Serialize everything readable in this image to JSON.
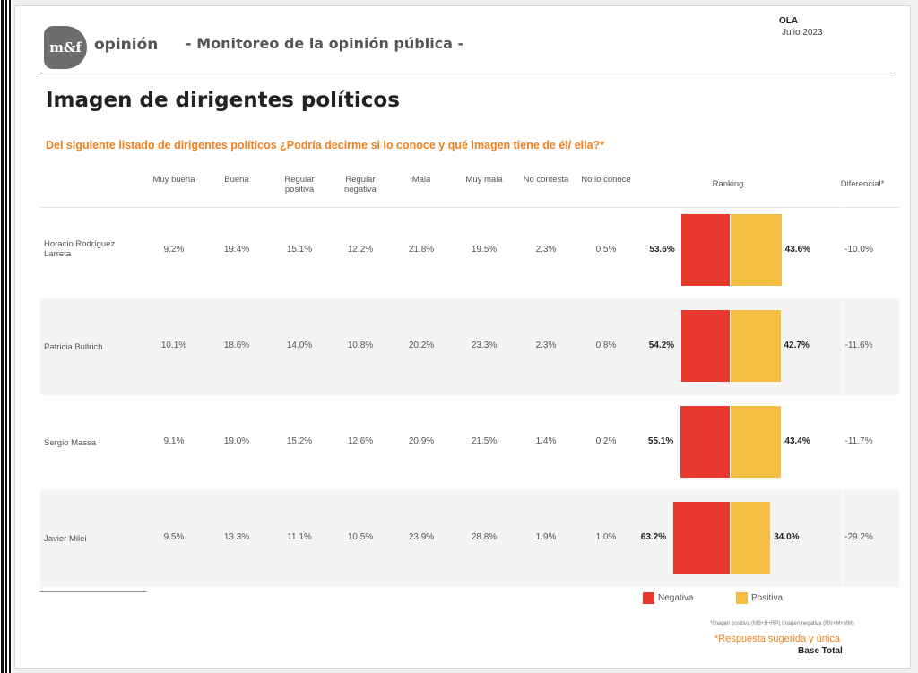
{
  "header": {
    "logo_text": "m&f",
    "brand": "opinión",
    "subtitle": "- Monitoreo de la opinión pública -",
    "wave_label": "OLA",
    "wave_date": "Julio 2023"
  },
  "title": "Imagen de dirigentes políticos",
  "question": "Del siguiente listado de dirigentes políticos ¿Podría decirme si lo conoce y qué imagen tiene de él/ ella?*",
  "chart_data": {
    "type": "table",
    "columns": [
      "Muy buena",
      "Buena",
      "Regular positiva",
      "Regular negativa",
      "Mala",
      "Muy mala",
      "No contesta",
      "No lo conoce"
    ],
    "ranking_header": "Ranking",
    "diff_header": "Diferencial*",
    "rows": [
      {
        "name": "Horacio Rodríguez Larreta",
        "values": [
          "9.2%",
          "19.4%",
          "15.1%",
          "12.2%",
          "21.8%",
          "19.5%",
          "2.3%",
          "0.5%"
        ],
        "negativa": 53.6,
        "positiva": 43.6,
        "negativa_label": "53.6%",
        "positiva_label": "43.6%",
        "diferencial": "-10.0%"
      },
      {
        "name": "Patricia Bullrich",
        "values": [
          "10.1%",
          "18.6%",
          "14.0%",
          "10.8%",
          "20.2%",
          "23.3%",
          "2.3%",
          "0.8%"
        ],
        "negativa": 54.2,
        "positiva": 42.7,
        "negativa_label": "54.2%",
        "positiva_label": "42.7%",
        "diferencial": "-11.6%"
      },
      {
        "name": "Sergio Massa",
        "values": [
          "9.1%",
          "19.0%",
          "15.2%",
          "12.6%",
          "20.9%",
          "21.5%",
          "1.4%",
          "0.2%"
        ],
        "negativa": 55.1,
        "positiva": 43.4,
        "negativa_label": "55.1%",
        "positiva_label": "43.4%",
        "diferencial": "-11.7%"
      },
      {
        "name": "Javier Milei",
        "values": [
          "9.5%",
          "13.3%",
          "11.1%",
          "10.5%",
          "23.9%",
          "28.8%",
          "1.9%",
          "1.0%"
        ],
        "negativa": 63.2,
        "positiva": 34.0,
        "negativa_label": "63.2%",
        "positiva_label": "34.0%",
        "diferencial": "-29.2%"
      }
    ],
    "series": [
      {
        "name": "Negativa",
        "color": "#e8392f"
      },
      {
        "name": "Positiva",
        "color": "#f4bd44"
      }
    ],
    "legend_position": "bottom-right"
  },
  "footnotes": {
    "definition": "*Imagen positiva (MB+B+RP)  Imagen negativa (RN+M+MM)",
    "suggested": "*Respuesta sugerida y única",
    "base": "Base Total"
  }
}
